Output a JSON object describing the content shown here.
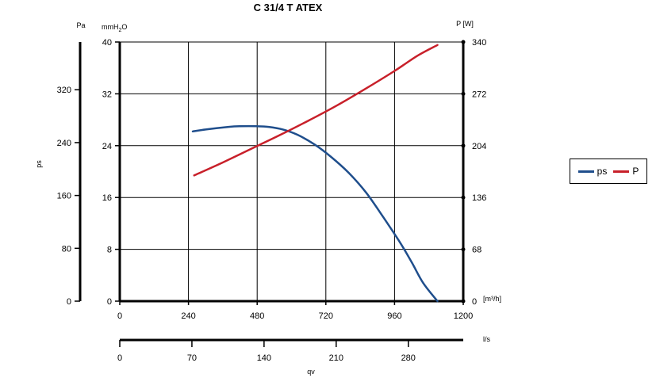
{
  "chart_data": {
    "type": "line",
    "title": "C 31/4 T ATEX",
    "xlabel_main": "[m³/h]",
    "xlabel_secondary": "l/s",
    "xlabel_bottom": "qv",
    "ylabel_left": "ps",
    "ylabel_pa_unit": "Pa",
    "ylabel_mm_unit": "mmH2O",
    "ylabel_mm_main": "mmH",
    "ylabel_mm_sub": "2",
    "ylabel_mm_tail": "O",
    "ylabel_right_unit": "P [W]",
    "xlim": [
      0,
      1200
    ],
    "xticks": [
      "0",
      "240",
      "480",
      "720",
      "960",
      "1200"
    ],
    "ylim_mmH2O": [
      0,
      40
    ],
    "yticks_mmH2O": [
      "0",
      "8",
      "16",
      "24",
      "32",
      "40"
    ],
    "yticks_pa": [
      "0",
      "80",
      "160",
      "240",
      "320"
    ],
    "yticks_pa_values": [
      0,
      80,
      160,
      240,
      320
    ],
    "ylim_w": [
      0,
      340
    ],
    "yticks_w": [
      "0",
      "68",
      "136",
      "204",
      "272",
      "340"
    ],
    "secondary_xticks": [
      "0",
      "70",
      "140",
      "210",
      "280"
    ],
    "secondary_xtick_values": [
      0,
      70,
      140,
      210,
      280
    ],
    "secondary_xlim": [
      0,
      333.3
    ],
    "grid": true,
    "legend_position": "right",
    "series": [
      {
        "name": "ps",
        "color": "#1f4e8c",
        "axis": "mmH2O",
        "x": [
          255,
          300,
          380,
          420,
          480,
          520,
          570,
          620,
          680,
          740,
          800,
          860,
          920,
          980,
          1020,
          1060,
          1110
        ],
        "y": [
          26.2,
          26.5,
          26.9,
          27.0,
          27.0,
          26.9,
          26.5,
          25.7,
          24.2,
          22.2,
          19.8,
          16.8,
          13.0,
          9.0,
          6.0,
          2.8,
          0.0
        ]
      },
      {
        "name": "P",
        "color": "#c8202a",
        "axis": "W",
        "x": [
          260,
          360,
          460,
          560,
          660,
          760,
          860,
          960,
          1040,
          1110
        ],
        "y": [
          165,
          182,
          200,
          218,
          237,
          257,
          279,
          302,
          322,
          336
        ]
      }
    ]
  }
}
